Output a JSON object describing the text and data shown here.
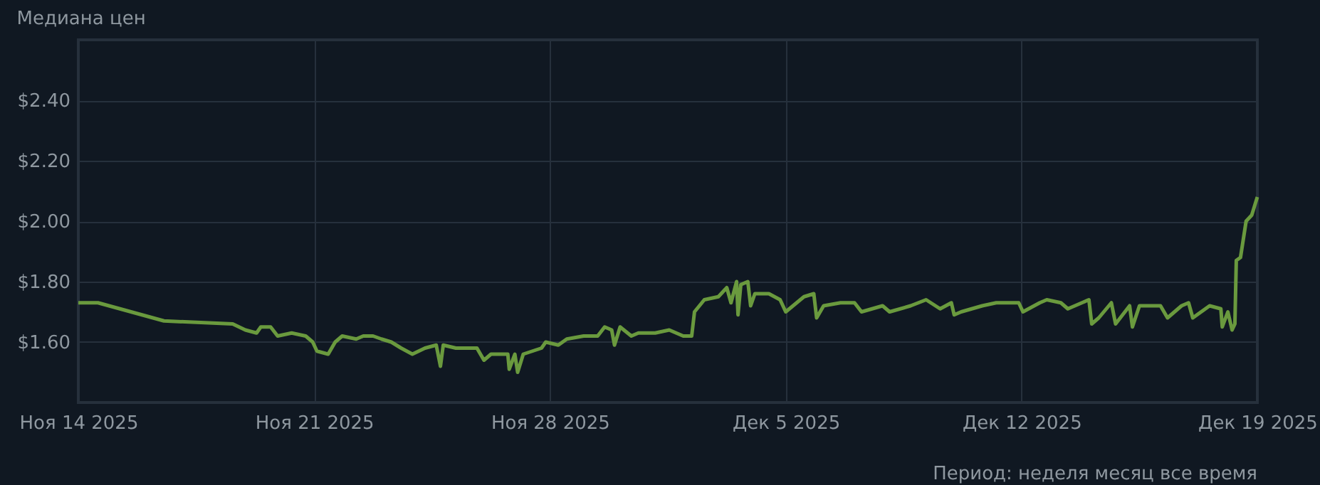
{
  "chart_data": {
    "type": "line",
    "title": "Медиана цен",
    "xlim": [
      "2025-11-14T00:00",
      "2025-12-19T00:00"
    ],
    "xticks": [
      {
        "value": "2025-11-14",
        "label": "Ноя 14 2025"
      },
      {
        "value": "2025-11-21",
        "label": "Ноя 21 2025"
      },
      {
        "value": "2025-11-28",
        "label": "Ноя 28 2025"
      },
      {
        "value": "2025-12-05",
        "label": "Дек 5 2025"
      },
      {
        "value": "2025-12-12",
        "label": "Дек 12 2025"
      },
      {
        "value": "2025-12-19",
        "label": "Дек 19 2025"
      }
    ],
    "ylim": [
      1.4,
      2.6
    ],
    "yticks": [
      {
        "value": 1.6,
        "label": "$1.60"
      },
      {
        "value": 1.8,
        "label": "$1.80"
      },
      {
        "value": 2.0,
        "label": "$2.00"
      },
      {
        "value": 2.2,
        "label": "$2.20"
      },
      {
        "value": 2.4,
        "label": "$2.40"
      }
    ],
    "grid": true,
    "marker": "none",
    "line_style": "solid",
    "annotations": [
      "Период: неделя месяц все время"
    ],
    "x": [
      "2025-11-14T00:00",
      "2025-11-14T14:00",
      "2025-11-16T13:00",
      "2025-11-18T14:00",
      "2025-11-18T23:00",
      "2025-11-19T07:00",
      "2025-11-19T10:00",
      "2025-11-19T17:00",
      "2025-11-19T22:00",
      "2025-11-20T08:00",
      "2025-11-20T18:00",
      "2025-11-20T23:00",
      "2025-11-21T02:00",
      "2025-11-21T10:00",
      "2025-11-21T15:00",
      "2025-11-21T20:00",
      "2025-11-22T06:00",
      "2025-11-22T11:00",
      "2025-11-22T18:00",
      "2025-11-23T00:00",
      "2025-11-23T07:00",
      "2025-11-23T14:00",
      "2025-11-23T22:00",
      "2025-11-24T07:00",
      "2025-11-24T15:00",
      "2025-11-24T18:00",
      "2025-11-24T20:00",
      "2025-11-25T05:00",
      "2025-11-25T20:00",
      "2025-11-26T01:00",
      "2025-11-26T06:00",
      "2025-11-26T18:00",
      "2025-11-26T19:00",
      "2025-11-26T23:00",
      "2025-11-27T01:00",
      "2025-11-27T05:00",
      "2025-11-27T18:00",
      "2025-11-27T21:00",
      "2025-11-28T06:00",
      "2025-11-28T12:00",
      "2025-11-29T00:00",
      "2025-11-29T10:00",
      "2025-11-29T15:00",
      "2025-11-29T20:00",
      "2025-11-29T22:00",
      "2025-11-30T02:00",
      "2025-11-30T10:00",
      "2025-11-30T15:00",
      "2025-12-01T03:00",
      "2025-12-01T13:00",
      "2025-12-01T23:00",
      "2025-12-02T05:00",
      "2025-12-02T07:00",
      "2025-12-02T14:00",
      "2025-12-03T00:00",
      "2025-12-03T06:00",
      "2025-12-03T09:00",
      "2025-12-03T13:00",
      "2025-12-03T14:00",
      "2025-12-03T16:00",
      "2025-12-03T21:00",
      "2025-12-03T23:00",
      "2025-12-04T02:00",
      "2025-12-04T12:00",
      "2025-12-04T20:00",
      "2025-12-05T00:00",
      "2025-12-05T13:00",
      "2025-12-05T20:00",
      "2025-12-05T22:00",
      "2025-12-06T03:00",
      "2025-12-06T15:00",
      "2025-12-07T01:00",
      "2025-12-07T06:00",
      "2025-12-07T21:00",
      "2025-12-08T02:00",
      "2025-12-08T17:00",
      "2025-12-09T04:00",
      "2025-12-09T14:00",
      "2025-12-09T22:00",
      "2025-12-10T00:00",
      "2025-12-10T05:00",
      "2025-12-10T20:00",
      "2025-12-11T06:00",
      "2025-12-11T22:00",
      "2025-12-12T01:00",
      "2025-12-12T13:00",
      "2025-12-12T18:00",
      "2025-12-13T04:00",
      "2025-12-13T09:00",
      "2025-12-13T19:00",
      "2025-12-14T00:00",
      "2025-12-14T02:00",
      "2025-12-14T07:00",
      "2025-12-14T16:00",
      "2025-12-14T19:00",
      "2025-12-15T05:00",
      "2025-12-15T07:00",
      "2025-12-15T12:00",
      "2025-12-16T03:00",
      "2025-12-16T08:00",
      "2025-12-16T18:00",
      "2025-12-16T23:00",
      "2025-12-17T02:00",
      "2025-12-17T14:00",
      "2025-12-17T22:00",
      "2025-12-17T23:00",
      "2025-12-18T03:00",
      "2025-12-18T06:00",
      "2025-12-18T08:00",
      "2025-12-18T09:00",
      "2025-12-18T12:00",
      "2025-12-18T16:00",
      "2025-12-18T20:00",
      "2025-12-19T00:00"
    ],
    "series": [
      {
        "color": "#6a9a3e",
        "values": [
          1.73,
          1.73,
          1.67,
          1.66,
          1.64,
          1.63,
          1.65,
          1.65,
          1.62,
          1.63,
          1.62,
          1.6,
          1.57,
          1.56,
          1.6,
          1.62,
          1.61,
          1.62,
          1.62,
          1.61,
          1.6,
          1.58,
          1.56,
          1.58,
          1.59,
          1.52,
          1.59,
          1.58,
          1.58,
          1.54,
          1.56,
          1.56,
          1.51,
          1.56,
          1.5,
          1.56,
          1.58,
          1.6,
          1.59,
          1.61,
          1.62,
          1.62,
          1.65,
          1.64,
          1.59,
          1.65,
          1.62,
          1.63,
          1.63,
          1.64,
          1.62,
          1.62,
          1.7,
          1.74,
          1.75,
          1.78,
          1.73,
          1.8,
          1.69,
          1.79,
          1.8,
          1.72,
          1.76,
          1.76,
          1.74,
          1.7,
          1.75,
          1.76,
          1.68,
          1.72,
          1.73,
          1.73,
          1.7,
          1.72,
          1.7,
          1.72,
          1.74,
          1.71,
          1.73,
          1.69,
          1.7,
          1.72,
          1.73,
          1.73,
          1.7,
          1.73,
          1.74,
          1.73,
          1.71,
          1.73,
          1.74,
          1.66,
          1.68,
          1.73,
          1.66,
          1.72,
          1.65,
          1.72,
          1.72,
          1.68,
          1.72,
          1.73,
          1.68,
          1.72,
          1.71,
          1.65,
          1.7,
          1.64,
          1.66,
          1.87,
          1.88,
          2.0,
          2.02,
          2.08
        ]
      }
    ]
  }
}
